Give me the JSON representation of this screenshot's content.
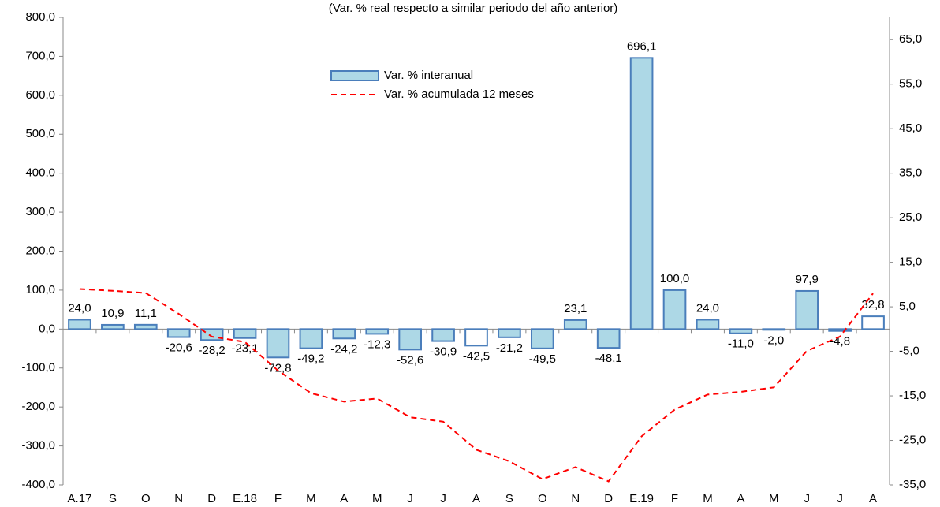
{
  "chart_data": {
    "type": "bar",
    "subtitle": "(Var. % real respecto a similar periodo del año anterior)",
    "categories": [
      "A.17",
      "S",
      "O",
      "N",
      "D",
      "E.18",
      "F",
      "M",
      "A",
      "M",
      "J",
      "J",
      "A",
      "S",
      "O",
      "N",
      "D",
      "E.19",
      "F",
      "M",
      "A",
      "M",
      "J",
      "J",
      "A"
    ],
    "series": [
      {
        "name": "Var. % interanual",
        "type": "bar",
        "color": "#add8e6",
        "stroke": "#4a7ebb",
        "colors": [
          "#add8e6",
          "#add8e6",
          "#add8e6",
          "#add8e6",
          "#add8e6",
          "#add8e6",
          "#add8e6",
          "#add8e6",
          "#add8e6",
          "#add8e6",
          "#add8e6",
          "#add8e6",
          "#ffffff",
          "#add8e6",
          "#add8e6",
          "#add8e6",
          "#add8e6",
          "#add8e6",
          "#add8e6",
          "#add8e6",
          "#add8e6",
          "#add8e6",
          "#add8e6",
          "#add8e6",
          "#ffffff"
        ],
        "values": [
          24.0,
          10.9,
          11.1,
          -20.6,
          -28.2,
          -23.1,
          -72.8,
          -49.2,
          -24.2,
          -12.3,
          -52.6,
          -30.9,
          -42.5,
          -21.2,
          -49.5,
          23.1,
          -48.1,
          696.1,
          100.0,
          24.0,
          -11.0,
          -2.0,
          97.9,
          -4.8,
          32.8
        ],
        "value_labels": [
          "24,0",
          "10,9",
          "11,1",
          "-20,6",
          "-28,2",
          "-23,1",
          "-72,8",
          "-49,2",
          "-24,2",
          "-12,3",
          "-52,6",
          "-30,9",
          "-42,5",
          "-21,2",
          "-49,5",
          "23,1",
          "-48,1",
          "696,1",
          "100,0",
          "24,0",
          "-11,0",
          "-2,0",
          "97,9",
          "-4,8",
          "32,8"
        ]
      },
      {
        "name": "Var. % acumulada 12 meses",
        "type": "line",
        "axis": "y2",
        "color": "#ff0000",
        "dashed": true,
        "values": [
          9.0,
          8.6,
          8.1,
          3.4,
          -1.7,
          -2.9,
          -9.3,
          -14.4,
          -16.3,
          -15.6,
          -19.8,
          -20.8,
          -27.1,
          -29.7,
          -33.7,
          -31.0,
          -34.2,
          -24.1,
          -18.1,
          -14.7,
          -14.1,
          -13.1,
          -4.9,
          -1.7,
          8.0
        ]
      }
    ],
    "ylim": [
      -400,
      800
    ],
    "yticks": [
      {
        "value": -400,
        "label": "-400,0"
      },
      {
        "value": -300,
        "label": "-300,0"
      },
      {
        "value": -200,
        "label": "-200,0"
      },
      {
        "value": -100,
        "label": "-100,0"
      },
      {
        "value": 0,
        "label": "0,0"
      },
      {
        "value": 100,
        "label": "100,0"
      },
      {
        "value": 200,
        "label": "200,0"
      },
      {
        "value": 300,
        "label": "300,0"
      },
      {
        "value": 400,
        "label": "400,0"
      },
      {
        "value": 500,
        "label": "500,0"
      },
      {
        "value": 600,
        "label": "600,0"
      },
      {
        "value": 700,
        "label": "700,0"
      },
      {
        "value": 800,
        "label": "800,0"
      }
    ],
    "y2lim": [
      -35,
      70
    ],
    "y2ticks": [
      {
        "value": -35,
        "label": "-35,0"
      },
      {
        "value": -25,
        "label": "-25,0"
      },
      {
        "value": -15,
        "label": "-15,0"
      },
      {
        "value": -5,
        "label": "-5,0"
      },
      {
        "value": 5,
        "label": "5,0"
      },
      {
        "value": 15,
        "label": "15,0"
      },
      {
        "value": 25,
        "label": "25,0"
      },
      {
        "value": 35,
        "label": "35,0"
      },
      {
        "value": 45,
        "label": "45,0"
      },
      {
        "value": 55,
        "label": "55,0"
      },
      {
        "value": 65,
        "label": "65,0"
      }
    ],
    "grid": false
  }
}
